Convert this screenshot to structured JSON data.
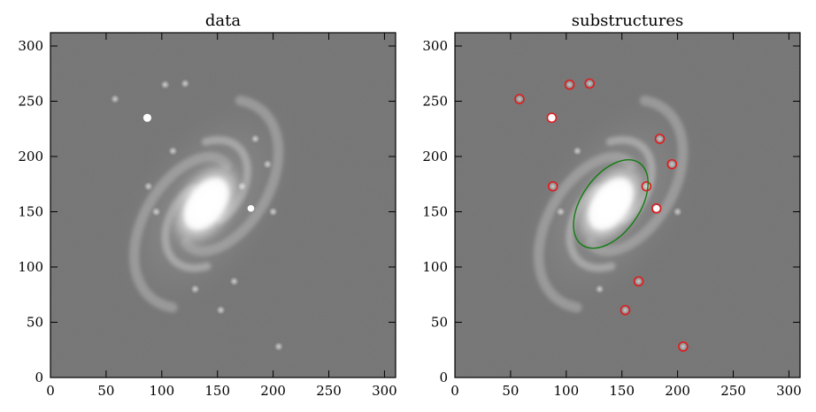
{
  "chart_data": [
    {
      "type": "image-scatter",
      "title": "data",
      "xlim": [
        0,
        310
      ],
      "ylim": [
        0,
        312
      ],
      "xticks": [
        0,
        50,
        100,
        150,
        200,
        250,
        300
      ],
      "yticks": [
        0,
        50,
        100,
        150,
        200,
        250,
        300
      ],
      "image": "spiral galaxy, grayscale",
      "features": [
        {
          "name": "star",
          "x": 87,
          "y": 235,
          "r": 3
        },
        {
          "name": "star",
          "x": 180,
          "y": 153,
          "r": 2.5
        }
      ]
    },
    {
      "type": "image-scatter",
      "title": "substructures",
      "xlim": [
        0,
        310
      ],
      "ylim": [
        0,
        312
      ],
      "xticks": [
        0,
        50,
        100,
        150,
        200,
        250,
        300
      ],
      "yticks": [
        0,
        50,
        100,
        150,
        200,
        250,
        300
      ],
      "image": "spiral galaxy, grayscale",
      "markers": {
        "color": "#e31a1c",
        "points": [
          {
            "x": 58,
            "y": 252
          },
          {
            "x": 103,
            "y": 265
          },
          {
            "x": 121,
            "y": 266
          },
          {
            "x": 87,
            "y": 235
          },
          {
            "x": 184,
            "y": 216
          },
          {
            "x": 195,
            "y": 193
          },
          {
            "x": 88,
            "y": 173
          },
          {
            "x": 172,
            "y": 173
          },
          {
            "x": 181,
            "y": 153
          },
          {
            "x": 165,
            "y": 87
          },
          {
            "x": 153,
            "y": 61
          },
          {
            "x": 205,
            "y": 28
          }
        ]
      },
      "ellipse": {
        "color": "#127d12",
        "center": {
          "x": 140,
          "y": 157
        },
        "semi_major": 45,
        "semi_minor": 26,
        "angle_deg": 55
      }
    }
  ]
}
